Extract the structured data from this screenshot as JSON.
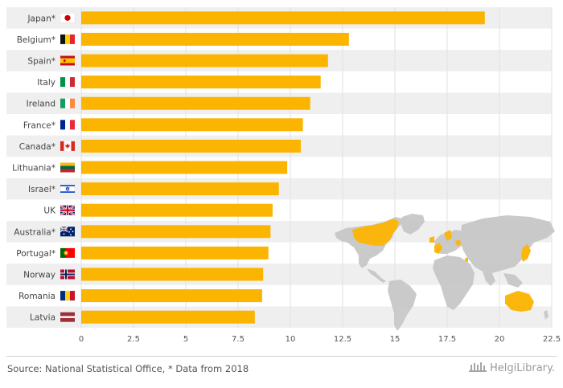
{
  "chart_data": {
    "type": "bar",
    "orientation": "horizontal",
    "categories": [
      "Japan*",
      "Belgium*",
      "Spain*",
      "Italy",
      "Ireland",
      "France*",
      "Canada*",
      "Lithuania*",
      "Israel*",
      "UK",
      "Australia*",
      "Portugal*",
      "Norway",
      "Romania",
      "Latvia"
    ],
    "values": [
      19.3,
      12.8,
      11.8,
      11.45,
      10.95,
      10.6,
      10.5,
      9.85,
      9.45,
      9.15,
      9.05,
      8.95,
      8.7,
      8.65,
      8.3
    ],
    "xlim": [
      0,
      22.5
    ],
    "xticks": [
      "0",
      "2.5",
      "5",
      "7.5",
      "10",
      "12.5",
      "15",
      "17.5",
      "20",
      "22.5"
    ],
    "title": "",
    "xlabel": "",
    "ylabel": "",
    "grid": true,
    "colors": {
      "bar": "#FBB400",
      "band": "#efefef",
      "gridline": "#e2e2e2",
      "map_land": "#c8c8c8",
      "map_highlight": "#FBB400"
    },
    "flag_icons": [
      "japan-flag",
      "belgium-flag",
      "spain-flag",
      "italy-flag",
      "ireland-flag",
      "france-flag",
      "canada-flag",
      "lithuania-flag",
      "israel-flag",
      "uk-flag",
      "australia-flag",
      "portugal-flag",
      "norway-flag",
      "romania-flag",
      "latvia-flag"
    ]
  },
  "footer": {
    "source": "Source: National Statistical Office, * Data from 2018",
    "logo_text": "HelgiLibrary.",
    "logo_icon": "helgi-library-building-icon"
  }
}
